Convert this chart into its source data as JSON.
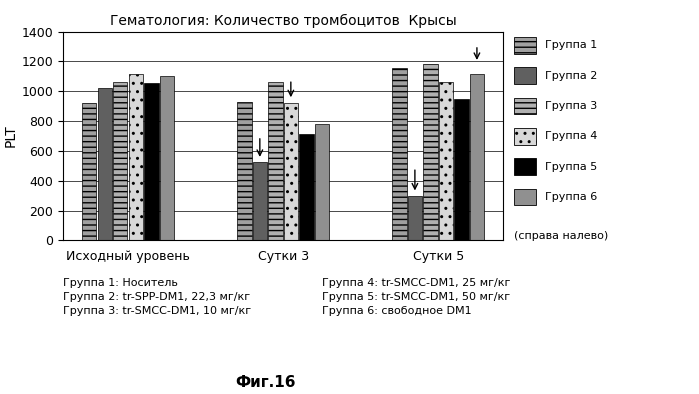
{
  "title": "Гематология: Количество тромбоцитов  Крысы",
  "ylabel": "PLT",
  "xlabel_groups": [
    "Исходный уровень",
    "Сутки 3",
    "Сутки 5"
  ],
  "legend_labels": [
    "Группа 1",
    "Группа 2",
    "Группа 3",
    "Группа 4",
    "Группа 5",
    "Группа 6"
  ],
  "legend_note": "(справа налево)",
  "caption": "Фиг.16",
  "footnote_left": "Группа 1: Носитель\nГруппа 2: tr-SPP-DM1, 22,3 мг/кг\nГруппа 3: tr-SMCC-DM1, 10 мг/кг",
  "footnote_right": "Группа 4: tr-SMCC-DM1, 25 мг/кг\nГруппа 5: tr-SMCC-DM1, 50 мг/кг\nГруппа 6: свободное DM1",
  "ylim": [
    0,
    1400
  ],
  "yticks": [
    0,
    200,
    400,
    600,
    800,
    1000,
    1200,
    1400
  ],
  "bar_data": {
    "Исходный уровень": [
      920,
      1020,
      1060,
      1115,
      1055,
      1105
    ],
    "Сутки 3": [
      925,
      525,
      1060,
      920,
      710,
      780
    ],
    "Сутки 5": [
      1155,
      300,
      1185,
      1060,
      945,
      1115
    ]
  },
  "bar_colors": [
    "#a0a0a0",
    "#606060",
    "#b0b0b0",
    "#d8d8d8",
    "#000000",
    "#909090"
  ],
  "bar_hatches": [
    "---",
    "",
    "---",
    "..",
    "",
    ""
  ],
  "background_color": "#ffffff",
  "figure_size": [
    6.99,
    3.94
  ],
  "dpi": 100
}
